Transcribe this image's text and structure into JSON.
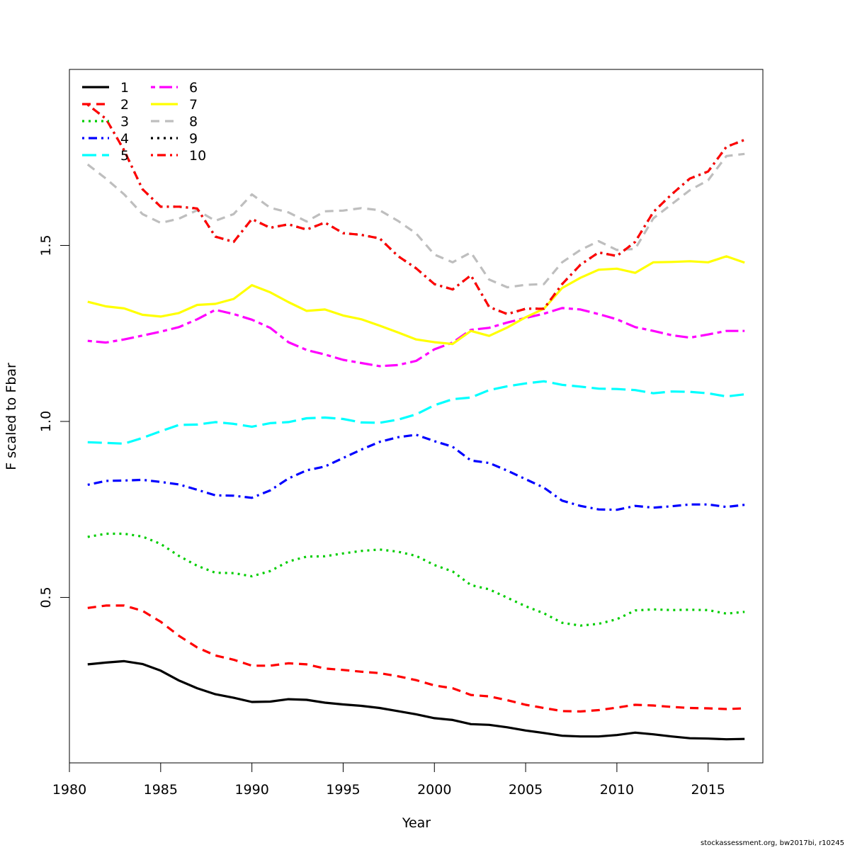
{
  "chart_data": {
    "type": "line",
    "xlabel": "Year",
    "ylabel": "F scaled to Fbar",
    "xlim": [
      1980,
      2018
    ],
    "ylim": [
      0.03,
      2.0
    ],
    "xticks": [
      1980,
      1985,
      1990,
      1995,
      2000,
      2005,
      2010,
      2015
    ],
    "yticks": [
      0.5,
      1.0,
      1.5
    ],
    "ytick_labels": [
      "0.5",
      "1.0",
      "1.5"
    ],
    "legend_position": "top-left",
    "grid": false,
    "x": [
      1981,
      1982,
      1983,
      1984,
      1985,
      1986,
      1987,
      1988,
      1989,
      1990,
      1991,
      1992,
      1993,
      1994,
      1995,
      1996,
      1997,
      1998,
      1999,
      2000,
      2001,
      2002,
      2003,
      2004,
      2005,
      2006,
      2007,
      2008,
      2009,
      2010,
      2011,
      2012,
      2013,
      2014,
      2015,
      2016,
      2017
    ],
    "series": [
      {
        "name": "1",
        "color": "#000000",
        "dash": "solid",
        "values": [
          0.31,
          0.315,
          0.319,
          0.311,
          0.292,
          0.264,
          0.242,
          0.225,
          0.215,
          0.203,
          0.204,
          0.211,
          0.209,
          0.201,
          0.196,
          0.192,
          0.186,
          0.177,
          0.168,
          0.157,
          0.152,
          0.14,
          0.138,
          0.131,
          0.122,
          0.115,
          0.107,
          0.105,
          0.105,
          0.109,
          0.116,
          0.111,
          0.105,
          0.1,
          0.099,
          0.097,
          0.098
        ]
      },
      {
        "name": "2",
        "color": "#ff0000",
        "dash": "dashed",
        "values": [
          0.47,
          0.477,
          0.477,
          0.462,
          0.431,
          0.391,
          0.358,
          0.335,
          0.323,
          0.306,
          0.306,
          0.313,
          0.31,
          0.298,
          0.294,
          0.289,
          0.285,
          0.276,
          0.265,
          0.25,
          0.242,
          0.223,
          0.219,
          0.208,
          0.195,
          0.186,
          0.177,
          0.176,
          0.18,
          0.187,
          0.195,
          0.193,
          0.189,
          0.186,
          0.185,
          0.183,
          0.185
        ]
      },
      {
        "name": "3",
        "color": "#00cd00",
        "dash": "dotted",
        "values": [
          0.672,
          0.681,
          0.681,
          0.673,
          0.652,
          0.618,
          0.59,
          0.57,
          0.569,
          0.56,
          0.575,
          0.602,
          0.616,
          0.617,
          0.625,
          0.632,
          0.636,
          0.63,
          0.618,
          0.592,
          0.574,
          0.535,
          0.523,
          0.499,
          0.475,
          0.455,
          0.428,
          0.42,
          0.425,
          0.438,
          0.463,
          0.466,
          0.464,
          0.465,
          0.464,
          0.454,
          0.459
        ]
      },
      {
        "name": "4",
        "color": "#0000ff",
        "dash": "dotdash",
        "values": [
          0.82,
          0.831,
          0.832,
          0.834,
          0.828,
          0.821,
          0.806,
          0.79,
          0.789,
          0.783,
          0.804,
          0.838,
          0.861,
          0.872,
          0.896,
          0.92,
          0.942,
          0.955,
          0.962,
          0.944,
          0.928,
          0.889,
          0.882,
          0.86,
          0.836,
          0.812,
          0.775,
          0.76,
          0.75,
          0.749,
          0.76,
          0.755,
          0.759,
          0.764,
          0.764,
          0.757,
          0.763
        ]
      },
      {
        "name": "5",
        "color": "#00ffff",
        "dash": "longdash",
        "values": [
          0.941,
          0.939,
          0.937,
          0.953,
          0.972,
          0.99,
          0.991,
          0.998,
          0.993,
          0.985,
          0.995,
          0.998,
          1.009,
          1.011,
          1.007,
          0.997,
          0.996,
          1.005,
          1.02,
          1.046,
          1.063,
          1.068,
          1.089,
          1.1,
          1.108,
          1.114,
          1.104,
          1.099,
          1.093,
          1.092,
          1.089,
          1.08,
          1.085,
          1.084,
          1.08,
          1.071,
          1.077
        ]
      },
      {
        "name": "6",
        "color": "#ff00ff",
        "dash": "twodash",
        "values": [
          1.229,
          1.224,
          1.233,
          1.244,
          1.255,
          1.268,
          1.29,
          1.317,
          1.305,
          1.289,
          1.266,
          1.225,
          1.203,
          1.19,
          1.175,
          1.166,
          1.157,
          1.16,
          1.172,
          1.205,
          1.224,
          1.26,
          1.266,
          1.281,
          1.294,
          1.306,
          1.322,
          1.318,
          1.305,
          1.29,
          1.268,
          1.257,
          1.245,
          1.238,
          1.247,
          1.257,
          1.257
        ]
      },
      {
        "name": "7",
        "color": "#ffff00",
        "dash": "solid",
        "values": [
          1.34,
          1.327,
          1.321,
          1.303,
          1.298,
          1.308,
          1.331,
          1.334,
          1.348,
          1.387,
          1.367,
          1.339,
          1.314,
          1.318,
          1.301,
          1.29,
          1.272,
          1.253,
          1.233,
          1.225,
          1.22,
          1.257,
          1.243,
          1.267,
          1.296,
          1.32,
          1.379,
          1.408,
          1.431,
          1.434,
          1.422,
          1.452,
          1.453,
          1.455,
          1.452,
          1.469,
          1.451
        ]
      },
      {
        "name": "8",
        "color": "#bebebe",
        "dash": "dashed",
        "values": [
          1.73,
          1.69,
          1.645,
          1.589,
          1.564,
          1.576,
          1.6,
          1.57,
          1.589,
          1.645,
          1.607,
          1.594,
          1.568,
          1.597,
          1.599,
          1.606,
          1.6,
          1.57,
          1.534,
          1.474,
          1.452,
          1.48,
          1.403,
          1.381,
          1.388,
          1.39,
          1.452,
          1.487,
          1.512,
          1.487,
          1.49,
          1.577,
          1.617,
          1.657,
          1.685,
          1.754,
          1.76
        ]
      },
      {
        "name": "9",
        "color": "#000000",
        "dash": "dotted",
        "values": [
          1.9,
          1.86,
          1.77,
          1.66,
          1.61,
          1.61,
          1.605,
          1.525,
          1.51,
          1.575,
          1.55,
          1.56,
          1.545,
          1.565,
          1.535,
          1.53,
          1.52,
          1.47,
          1.435,
          1.39,
          1.375,
          1.415,
          1.325,
          1.305,
          1.32,
          1.32,
          1.39,
          1.445,
          1.48,
          1.47,
          1.51,
          1.595,
          1.645,
          1.69,
          1.71,
          1.78,
          1.8
        ]
      },
      {
        "name": "10",
        "color": "#ff0000",
        "dash": "dotdash",
        "values": [
          1.9,
          1.86,
          1.77,
          1.66,
          1.61,
          1.61,
          1.605,
          1.525,
          1.51,
          1.575,
          1.55,
          1.56,
          1.545,
          1.565,
          1.535,
          1.53,
          1.52,
          1.47,
          1.435,
          1.39,
          1.375,
          1.415,
          1.325,
          1.305,
          1.32,
          1.32,
          1.39,
          1.445,
          1.48,
          1.47,
          1.51,
          1.595,
          1.645,
          1.69,
          1.71,
          1.78,
          1.8
        ]
      }
    ]
  },
  "credit": "stockassessment.org, bw2017bi, r10245"
}
